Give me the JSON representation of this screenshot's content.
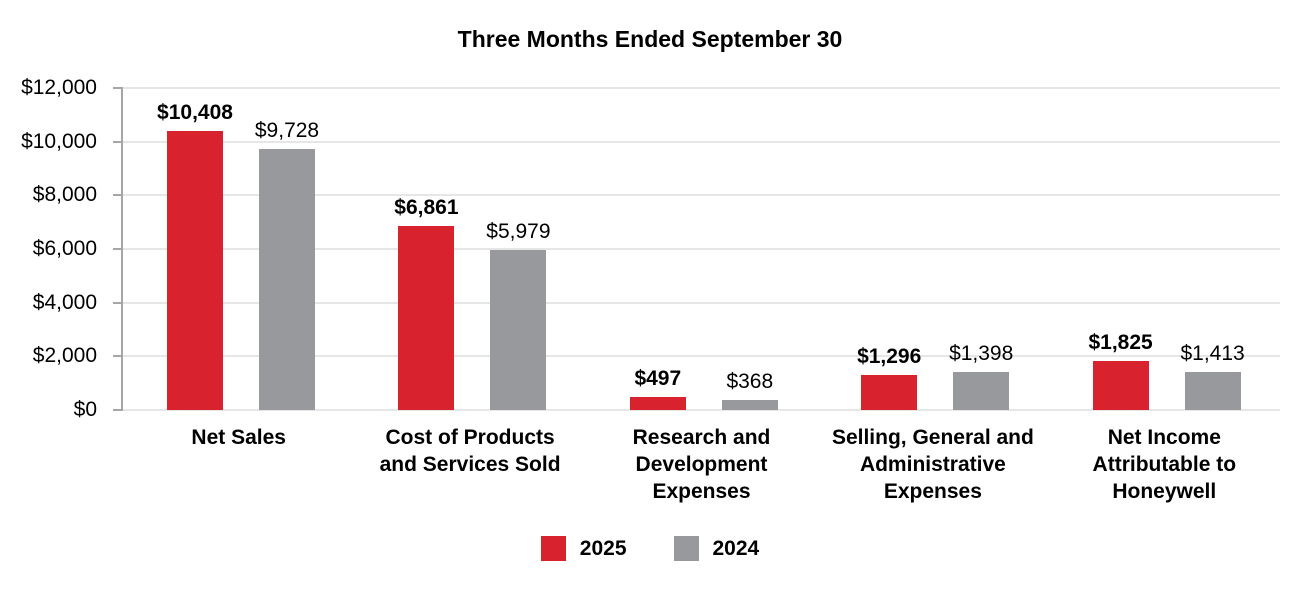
{
  "page": {
    "background": "#FFFFFF"
  },
  "chart_data": {
    "type": "bar",
    "title": "Three Months Ended September 30",
    "categories": [
      {
        "label": "Net Sales",
        "lines": [
          "Net Sales"
        ]
      },
      {
        "label": "Cost of Products and Services Sold",
        "lines": [
          "Cost of Products",
          "and Services Sold"
        ]
      },
      {
        "label": "Research and Development Expenses",
        "lines": [
          "Research and",
          "Development",
          "Expenses"
        ]
      },
      {
        "label": "Selling, General and Administrative Expenses",
        "lines": [
          "Selling, General and",
          "Administrative",
          "Expenses"
        ]
      },
      {
        "label": "Net Income Attributable to Honeywell",
        "lines": [
          "Net Income",
          "Attributable to",
          "Honeywell"
        ]
      }
    ],
    "series": [
      {
        "name": "2025",
        "color": "#D8222E",
        "values": [
          10408,
          6861,
          497,
          1296,
          1825
        ],
        "labels": [
          "$10,408",
          "$6,861",
          "$497",
          "$1,296",
          "$1,825"
        ],
        "label_bold": true
      },
      {
        "name": "2024",
        "color": "#97999C",
        "values": [
          9728,
          5979,
          368,
          1398,
          1413
        ],
        "labels": [
          "$9,728",
          "$5,979",
          "$368",
          "$1,398",
          "$1,413"
        ],
        "label_bold": false
      }
    ],
    "y_axis": {
      "min": 0,
      "max": 12000,
      "tick_step": 2000,
      "ticks": [
        {
          "value": 0,
          "label": "$0"
        },
        {
          "value": 2000,
          "label": "$2,000"
        },
        {
          "value": 4000,
          "label": "$4,000"
        },
        {
          "value": 6000,
          "label": "$6,000"
        },
        {
          "value": 8000,
          "label": "$8,000"
        },
        {
          "value": 10000,
          "label": "$10,000"
        },
        {
          "value": 12000,
          "label": "$12,000"
        }
      ]
    },
    "grid": true,
    "legend_position": "bottom",
    "colors": {
      "gridline": "#E6E6E6",
      "axis": "#A6A6A6",
      "text": "#000000"
    }
  }
}
